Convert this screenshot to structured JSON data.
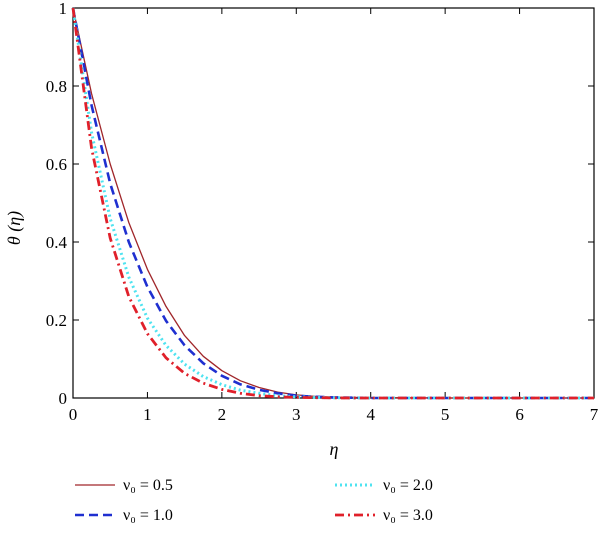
{
  "chart_data": {
    "type": "line",
    "title": "",
    "xlabel": "η",
    "ylabel": "θ (η)",
    "xlim": [
      0,
      7
    ],
    "ylim": [
      0,
      1
    ],
    "xticks": [
      0,
      1,
      2,
      3,
      4,
      5,
      6,
      7
    ],
    "yticks": [
      0,
      0.2,
      0.4,
      0.6,
      0.8,
      1
    ],
    "ytick_labels": [
      "0",
      "0.2",
      "0.4",
      "0.6",
      "0.8",
      "1"
    ],
    "grid": false,
    "legend_placement": "bottom",
    "x": [
      0,
      0.25,
      0.5,
      0.75,
      1,
      1.25,
      1.5,
      1.75,
      2,
      2.25,
      2.5,
      2.75,
      3,
      3.25,
      3.5,
      4,
      5,
      6,
      7
    ],
    "series": [
      {
        "name": "ν₀ = 0.5",
        "color": "#a0262a",
        "style": "solid",
        "values": [
          1.0,
          0.78,
          0.6,
          0.45,
          0.33,
          0.235,
          0.16,
          0.107,
          0.07,
          0.044,
          0.027,
          0.015,
          0.008,
          0.004,
          0.002,
          0.001,
          0,
          0,
          0
        ]
      },
      {
        "name": "ν₀ = 1.0",
        "color": "#1f2fd0",
        "style": "dashed",
        "values": [
          1.0,
          0.75,
          0.55,
          0.4,
          0.285,
          0.198,
          0.135,
          0.089,
          0.057,
          0.035,
          0.021,
          0.012,
          0.006,
          0.003,
          0.0015,
          0,
          0,
          0,
          0
        ]
      },
      {
        "name": "ν₀ = 2.0",
        "color": "#4fe3f0",
        "style": "dotted",
        "values": [
          1.0,
          0.68,
          0.46,
          0.31,
          0.205,
          0.135,
          0.087,
          0.055,
          0.034,
          0.02,
          0.012,
          0.006,
          0.003,
          0.0015,
          0.0007,
          0,
          0,
          0,
          0
        ]
      },
      {
        "name": "ν₀ = 3.0",
        "color": "#e0202a",
        "style": "dashdot",
        "values": [
          1.0,
          0.64,
          0.41,
          0.26,
          0.165,
          0.103,
          0.063,
          0.038,
          0.022,
          0.012,
          0.006,
          0.003,
          0.0015,
          0.0007,
          0.0003,
          0,
          0,
          0,
          0
        ]
      }
    ]
  }
}
